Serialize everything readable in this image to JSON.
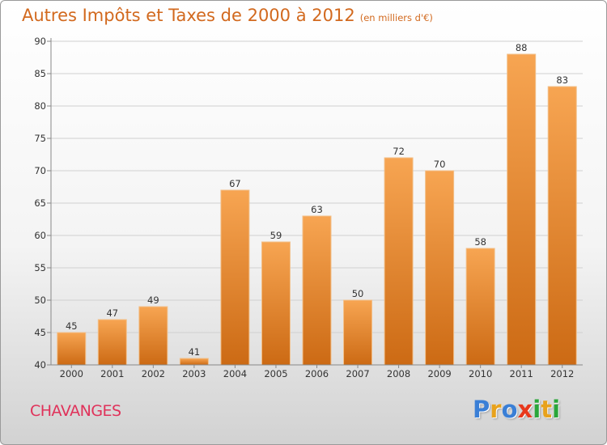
{
  "header": {
    "title": "Autres Impôts et Taxes de 2000 à 2012",
    "unit": "(en milliers d'€)"
  },
  "footer": {
    "commune": "CHAVANGES",
    "logo_letters": [
      {
        "ch": "P",
        "color": "#3a7fd6"
      },
      {
        "ch": "r",
        "color": "#e8a21c"
      },
      {
        "ch": "o",
        "color": "#3a7fd6"
      },
      {
        "ch": "x",
        "color": "#e8381c"
      },
      {
        "ch": "i",
        "color": "#2aa63a"
      },
      {
        "ch": "t",
        "color": "#e8a21c"
      },
      {
        "ch": "i",
        "color": "#2aa63a"
      }
    ]
  },
  "chart_data": {
    "type": "bar",
    "title": "Autres Impôts et Taxes de 2000 à 2012",
    "subtitle": "(en milliers d'€)",
    "categories": [
      "2000",
      "2001",
      "2002",
      "2003",
      "2004",
      "2005",
      "2006",
      "2007",
      "2008",
      "2009",
      "2010",
      "2011",
      "2012"
    ],
    "values": [
      45,
      47,
      49,
      41,
      67,
      59,
      63,
      50,
      72,
      70,
      58,
      88,
      83
    ],
    "ylim": [
      40,
      90
    ],
    "yticks": [
      40,
      45,
      50,
      55,
      60,
      65,
      70,
      75,
      80,
      85,
      90
    ],
    "xlabel": "",
    "ylabel": "",
    "grid": true,
    "colors": {
      "bar_light": "#f7a552",
      "bar_dark": "#cc6a14",
      "bar_edge": "#f2c08a",
      "grid": "#d0d0d0",
      "axis": "#888888"
    }
  }
}
